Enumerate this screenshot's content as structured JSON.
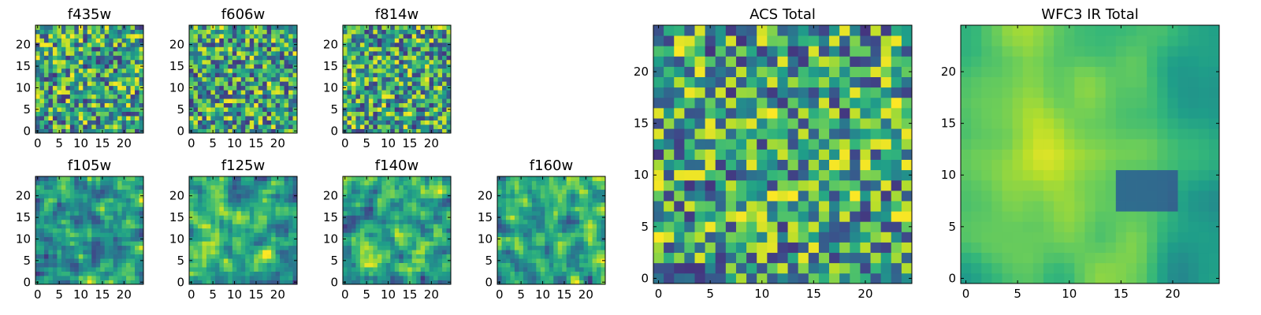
{
  "colormap": "viridis",
  "colormap_stops": [
    "#440154",
    "#482878",
    "#3e4989",
    "#31688e",
    "#26828e",
    "#1f9e89",
    "#35b779",
    "#6ece58",
    "#b5de2b",
    "#fde725"
  ],
  "chart_data": [
    {
      "type": "heatmap",
      "title": "f435w",
      "xlim": [
        0,
        24
      ],
      "ylim": [
        0,
        24
      ],
      "xticks": [
        "0",
        "5",
        "10",
        "15",
        "20"
      ],
      "yticks": [
        "0",
        "5",
        "10",
        "15",
        "20"
      ],
      "grid_size": 25,
      "seed": 11,
      "smooth": 0,
      "note_values": "pixel values not readable; random-like texture"
    },
    {
      "type": "heatmap",
      "title": "f606w",
      "xlim": [
        0,
        24
      ],
      "ylim": [
        0,
        24
      ],
      "xticks": [
        "0",
        "5",
        "10",
        "15",
        "20"
      ],
      "yticks": [
        "0",
        "5",
        "10",
        "15",
        "20"
      ],
      "grid_size": 25,
      "seed": 23,
      "smooth": 0
    },
    {
      "type": "heatmap",
      "title": "f814w",
      "xlim": [
        0,
        24
      ],
      "ylim": [
        0,
        24
      ],
      "xticks": [
        "0",
        "5",
        "10",
        "15",
        "20"
      ],
      "yticks": [
        "0",
        "5",
        "10",
        "15",
        "20"
      ],
      "grid_size": 25,
      "seed": 37,
      "smooth": 0
    },
    {
      "type": "heatmap",
      "title": "f105w",
      "xlim": [
        0,
        24
      ],
      "ylim": [
        0,
        24
      ],
      "xticks": [
        "0",
        "5",
        "10",
        "15",
        "20"
      ],
      "yticks": [
        "0",
        "5",
        "10",
        "15",
        "20"
      ],
      "grid_size": 25,
      "seed": 41,
      "smooth": 1
    },
    {
      "type": "heatmap",
      "title": "f125w",
      "xlim": [
        0,
        24
      ],
      "ylim": [
        0,
        24
      ],
      "xticks": [
        "0",
        "5",
        "10",
        "15",
        "20"
      ],
      "yticks": [
        "0",
        "5",
        "10",
        "15",
        "20"
      ],
      "grid_size": 25,
      "seed": 53,
      "smooth": 1
    },
    {
      "type": "heatmap",
      "title": "f140w",
      "xlim": [
        0,
        24
      ],
      "ylim": [
        0,
        24
      ],
      "xticks": [
        "0",
        "5",
        "10",
        "15",
        "20"
      ],
      "yticks": [
        "0",
        "5",
        "10",
        "15",
        "20"
      ],
      "grid_size": 25,
      "seed": 67,
      "smooth": 1
    },
    {
      "type": "heatmap",
      "title": "f160w",
      "xlim": [
        0,
        24
      ],
      "ylim": [
        0,
        24
      ],
      "xticks": [
        "0",
        "5",
        "10",
        "15",
        "20"
      ],
      "yticks": [
        "0",
        "5",
        "10",
        "15",
        "20"
      ],
      "grid_size": 25,
      "seed": 79,
      "smooth": 1
    },
    {
      "type": "heatmap",
      "title": "ACS Total",
      "xlim": [
        0,
        24
      ],
      "ylim": [
        0,
        24
      ],
      "xticks": [
        "0",
        "5",
        "10",
        "15",
        "20"
      ],
      "yticks": [
        "0",
        "5",
        "10",
        "15",
        "20"
      ],
      "grid_size": 25,
      "seed": 97,
      "smooth": 0
    },
    {
      "type": "heatmap",
      "title": "WFC3 IR Total",
      "xlim": [
        0,
        24
      ],
      "ylim": [
        0,
        24
      ],
      "xticks": [
        "0",
        "5",
        "10",
        "15",
        "20"
      ],
      "yticks": [
        "0",
        "5",
        "10",
        "15",
        "20"
      ],
      "grid_size": 25,
      "seed": 131,
      "smooth": 3,
      "gradient": true
    }
  ]
}
